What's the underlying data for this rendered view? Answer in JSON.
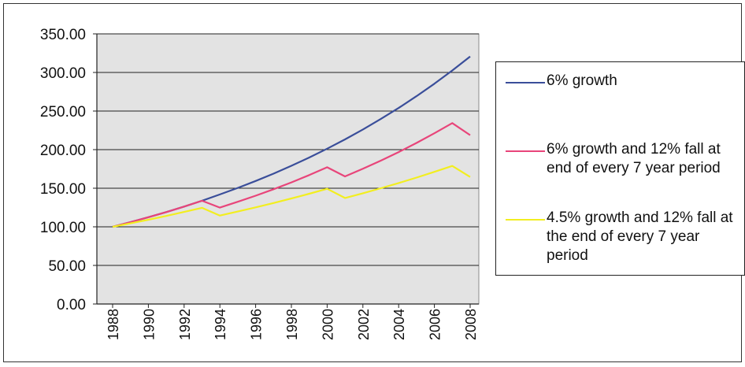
{
  "chart_data": {
    "type": "line",
    "title": "",
    "xlabel": "",
    "ylabel": "",
    "ylim": [
      0,
      350
    ],
    "y_ticks": [
      "0.00",
      "50.00",
      "100.00",
      "150.00",
      "200.00",
      "250.00",
      "300.00",
      "350.00"
    ],
    "x_ticks": [
      "1988",
      "1990",
      "1992",
      "1994",
      "1996",
      "1998",
      "2000",
      "2002",
      "2004",
      "2006",
      "2008"
    ],
    "x": [
      1988,
      1989,
      1990,
      1991,
      1992,
      1993,
      1994,
      1995,
      1996,
      1997,
      1998,
      1999,
      2000,
      2001,
      2002,
      2003,
      2004,
      2005,
      2006,
      2007,
      2008
    ],
    "grid": true,
    "legend_position": "right",
    "plot_background": "#e3e3e3",
    "series": [
      {
        "name": "6% growth",
        "color": "#3a4e9a",
        "values": [
          100.0,
          106.0,
          112.4,
          119.1,
          126.2,
          133.8,
          141.9,
          150.4,
          159.4,
          168.9,
          179.1,
          189.8,
          201.2,
          213.3,
          226.1,
          239.7,
          254.0,
          269.3,
          285.4,
          302.6,
          320.7
        ]
      },
      {
        "name": "6% growth and 12% fall at end of every 7 year period",
        "color": "#e8457a",
        "values": [
          100.0,
          106.0,
          112.4,
          119.1,
          126.2,
          133.8,
          124.9,
          132.4,
          140.3,
          148.7,
          157.6,
          167.0,
          177.1,
          165.3,
          175.2,
          185.7,
          196.8,
          208.7,
          221.2,
          234.4,
          218.8
        ]
      },
      {
        "name": "4.5% growth and 12% fall at the end of every 7 year period",
        "color": "#f2ee20",
        "values": [
          100.0,
          104.5,
          109.2,
          114.1,
          119.3,
          124.6,
          114.6,
          119.8,
          125.2,
          130.8,
          136.7,
          142.9,
          149.3,
          137.3,
          143.5,
          150.0,
          156.7,
          163.8,
          171.2,
          178.9,
          164.6
        ]
      }
    ]
  }
}
